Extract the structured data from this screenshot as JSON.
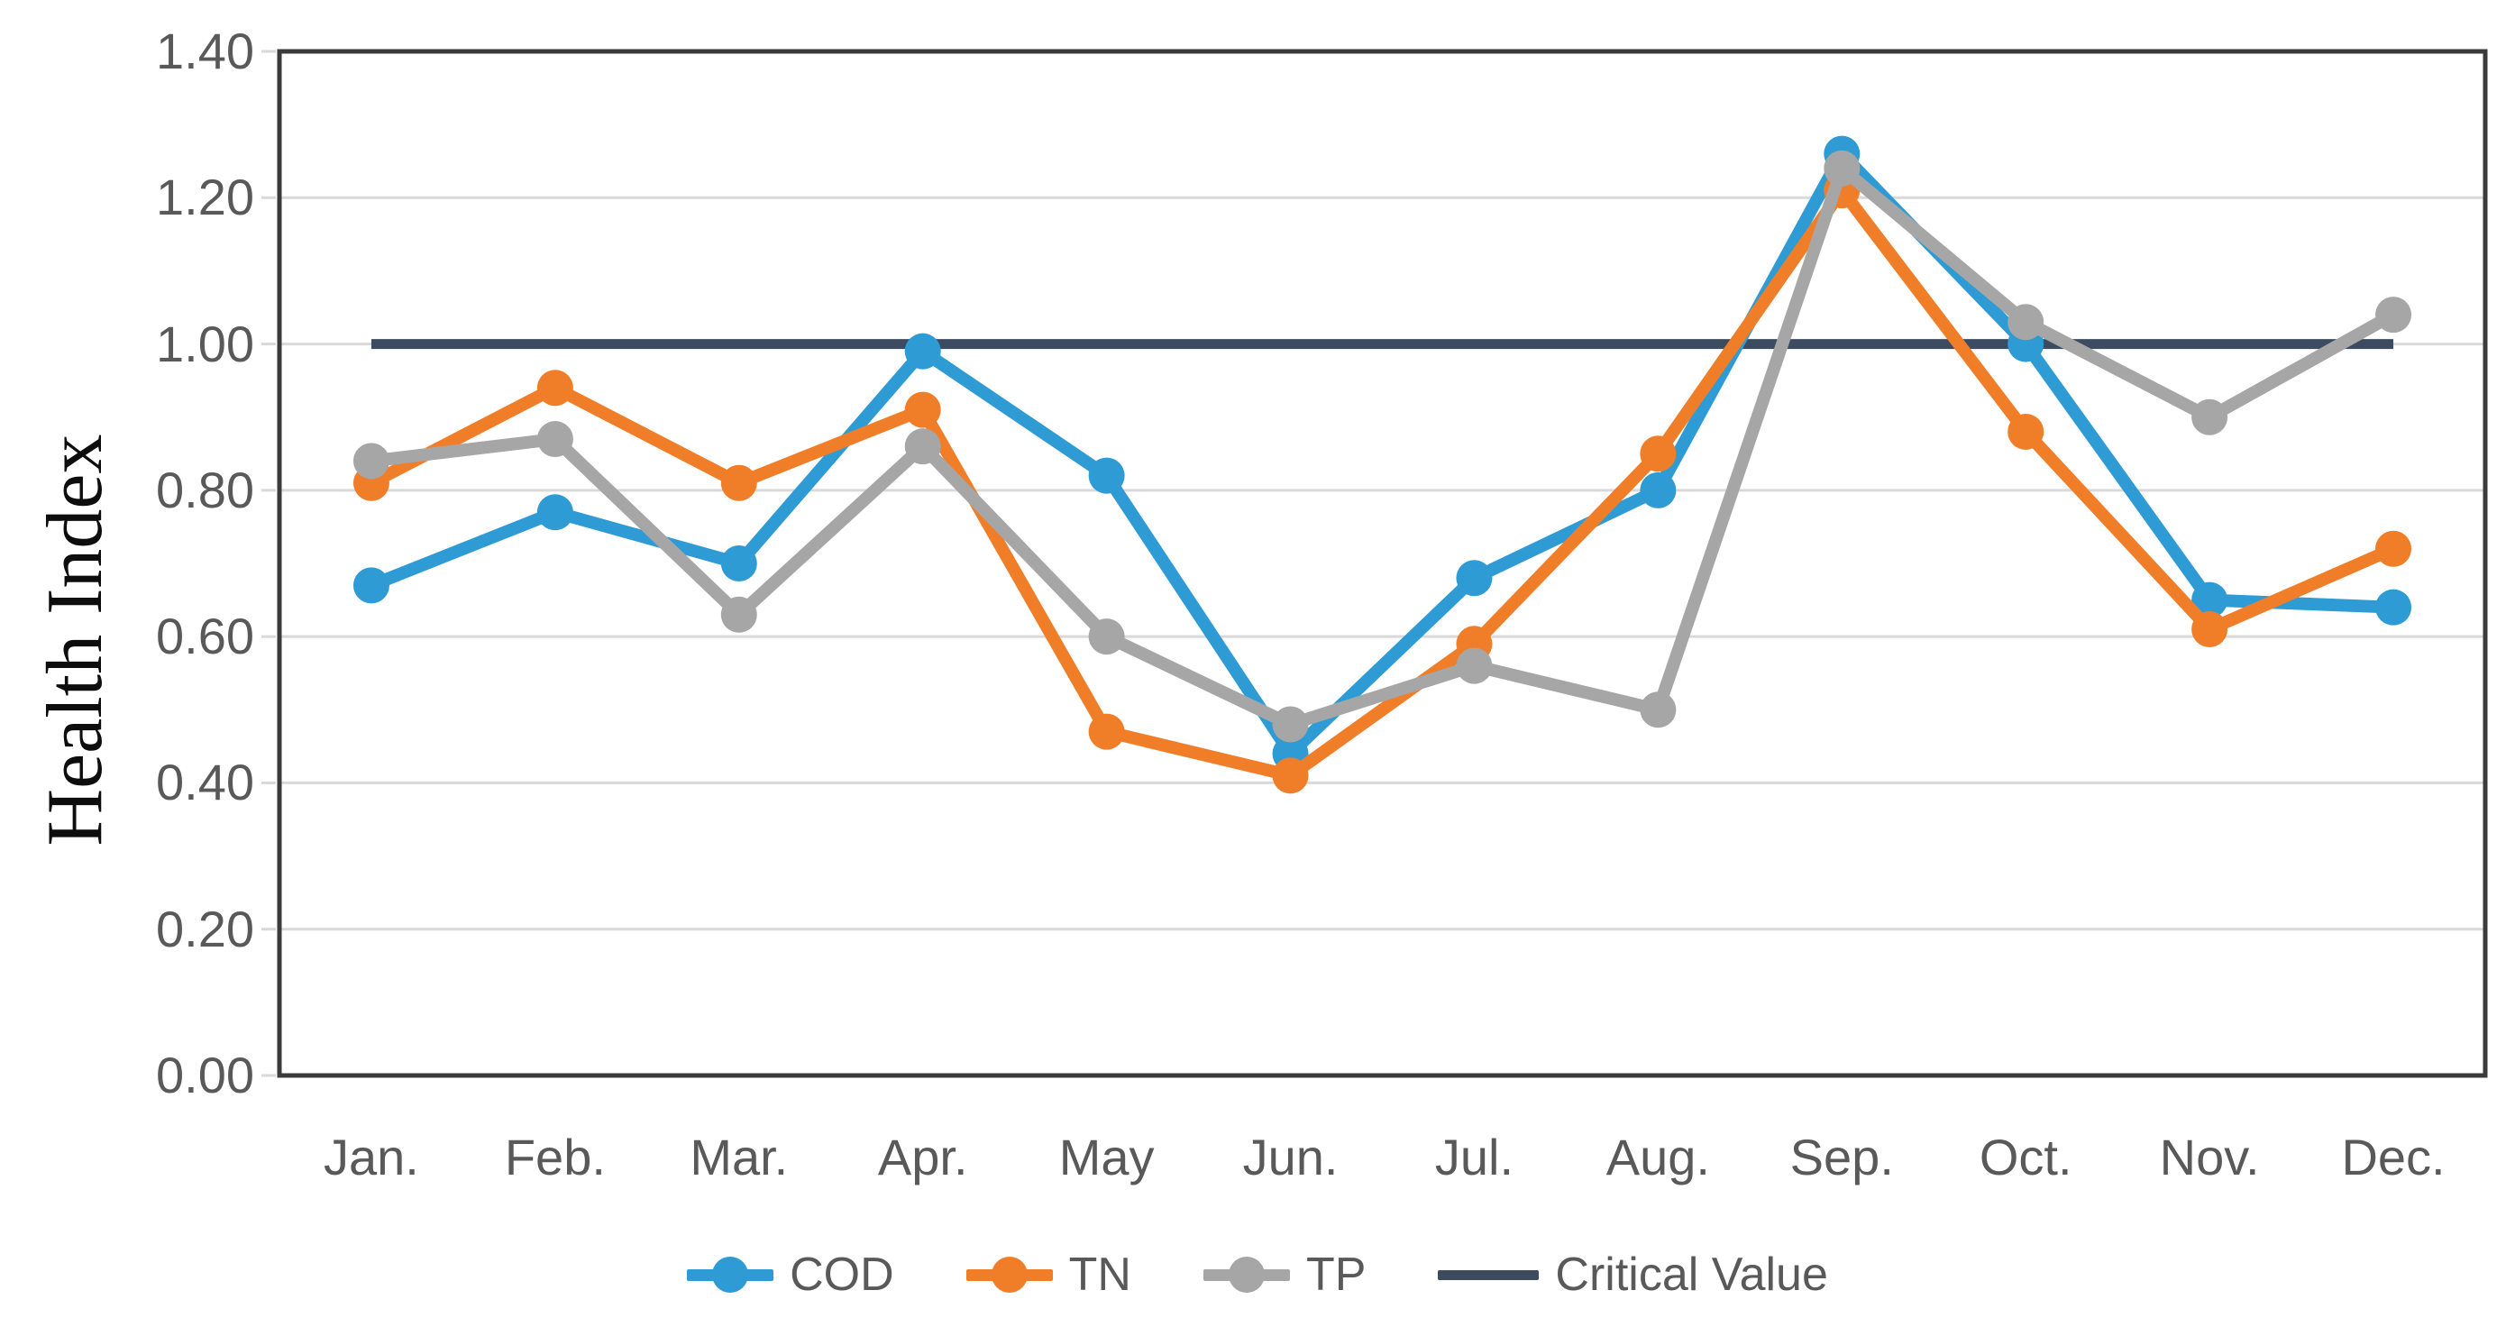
{
  "chart_data": {
    "type": "line",
    "title": "",
    "ylabel": "Health Index",
    "xlabel": "",
    "categories": [
      "Jan.",
      "Feb.",
      "Mar.",
      "Apr.",
      "May",
      "Jun.",
      "Jul.",
      "Aug.",
      "Sep.",
      "Oct.",
      "Nov.",
      "Dec."
    ],
    "series": [
      {
        "name": "COD",
        "color": "#2E9BD5",
        "values": [
          0.67,
          0.77,
          0.7,
          0.99,
          0.82,
          0.44,
          0.68,
          0.8,
          1.26,
          1.0,
          0.65,
          0.64
        ]
      },
      {
        "name": "TN",
        "color": "#F07E29",
        "values": [
          0.81,
          0.94,
          0.81,
          0.91,
          0.47,
          0.41,
          0.59,
          0.85,
          1.21,
          0.88,
          0.61,
          0.72
        ]
      },
      {
        "name": "TP",
        "color": "#A6A6A6",
        "values": [
          0.84,
          0.87,
          0.63,
          0.86,
          0.6,
          0.48,
          0.56,
          0.5,
          1.24,
          1.03,
          0.9,
          1.04
        ]
      }
    ],
    "critical_line": {
      "name": "Critical Value",
      "color": "#3C4B60",
      "value": 1.0
    },
    "y_axis": {
      "min": 0.0,
      "max": 1.4,
      "step": 0.2,
      "tick_labels": [
        "0.00",
        "0.20",
        "0.40",
        "0.60",
        "0.80",
        "1.00",
        "1.20",
        "1.40"
      ]
    },
    "legend_position": "bottom",
    "grid": "horizontal",
    "colors": {
      "gridline": "#D9D9D9",
      "axis_border": "#3B3B3B",
      "tick_text": "#595959"
    }
  }
}
